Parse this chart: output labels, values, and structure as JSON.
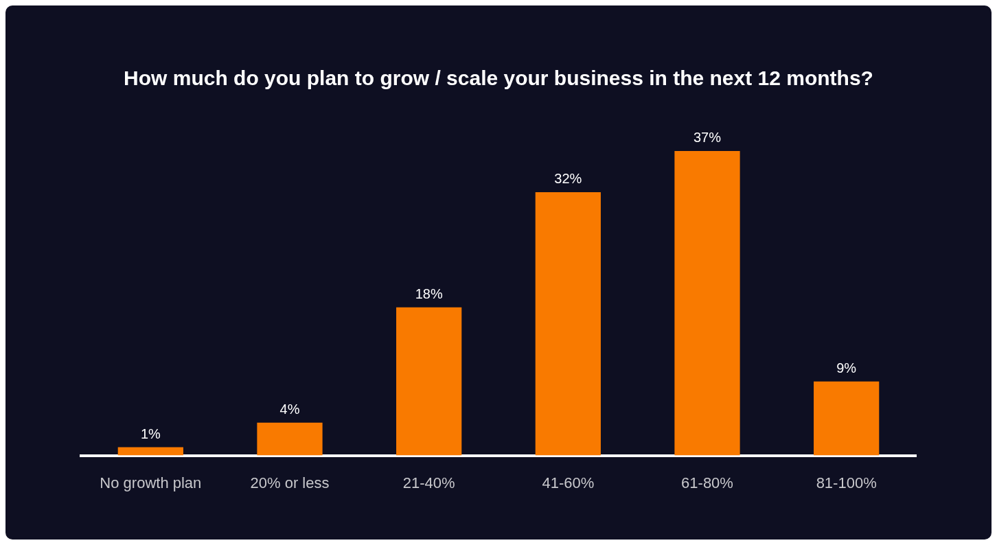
{
  "chart_data": {
    "type": "bar",
    "title": "How much do you plan to grow / scale your business in the next 12 months?",
    "categories": [
      "No growth plan",
      "20% or less",
      "21-40%",
      "41-60%",
      "61-80%",
      "81-100%"
    ],
    "values": [
      1,
      4,
      18,
      32,
      37,
      9
    ],
    "value_labels": [
      "1%",
      "4%",
      "18%",
      "32%",
      "37%",
      "9%"
    ],
    "color": "#f97a00",
    "legend": false
  }
}
